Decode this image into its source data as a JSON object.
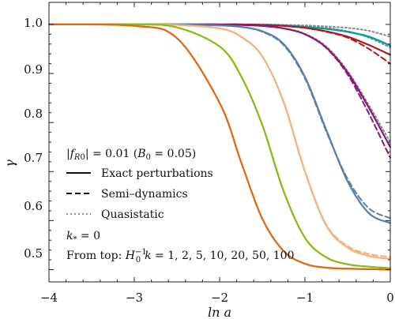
{
  "chart_data": {
    "type": "line",
    "xlabel": "ln a",
    "ylabel": "γ",
    "xlim": [
      -4,
      0
    ],
    "ylim": [
      0.475,
      1.045
    ],
    "xticks": [
      "−4",
      "−3",
      "−2",
      "−1",
      "0"
    ],
    "yticks": [
      "0.5",
      "0.6",
      "0.7",
      "0.8",
      "0.9",
      "1.0"
    ],
    "grid": false,
    "legend": {
      "placement": "bottom-left",
      "header": "|f_R0| = 0.01 (B_0 = 0.05)",
      "styles": [
        {
          "label": "Exact perturbations",
          "dash": "solid"
        },
        {
          "label": "Semi–dynamics",
          "dash": "dashed"
        },
        {
          "label": "Quasistatic",
          "dash": "dotted"
        }
      ],
      "kstar": "k_* = 0",
      "from_top": "From top: H_0^{-1}k = 1, 2, 5, 10, 20, 50, 100"
    },
    "curves_sampled_at_ln_a": [
      -4,
      -3,
      -2.5,
      -2,
      -1.75,
      -1.5,
      -1.25,
      -1,
      -0.75,
      -0.5,
      -0.25,
      0
    ],
    "series": [
      {
        "k": "1",
        "color": "#00a0a0",
        "exact": [
          1.0,
          1.0,
          1.0,
          1.0,
          1.0,
          0.999,
          0.998,
          0.995,
          0.991,
          0.985,
          0.975,
          0.957
        ],
        "semi": [
          1.0,
          1.0,
          1.0,
          1.0,
          1.0,
          0.999,
          0.998,
          0.995,
          0.991,
          0.985,
          0.975,
          0.957
        ],
        "quasistatic": [
          1.0,
          1.0,
          1.0,
          1.0,
          1.0,
          1.0,
          0.999,
          0.998,
          0.996,
          0.993,
          0.987,
          0.975
        ]
      },
      {
        "k": "2",
        "color": "#b01820",
        "exact": [
          1.0,
          1.0,
          1.0,
          1.0,
          1.0,
          0.999,
          0.997,
          0.993,
          0.986,
          0.975,
          0.958,
          0.938
        ],
        "semi": [
          1.0,
          1.0,
          1.0,
          1.0,
          1.0,
          0.999,
          0.997,
          0.993,
          0.985,
          0.973,
          0.95,
          0.92
        ],
        "quasistatic": [
          1.0,
          1.0,
          1.0,
          1.0,
          1.0,
          1.0,
          0.999,
          0.997,
          0.993,
          0.986,
          0.973,
          0.953
        ]
      },
      {
        "k": "5",
        "color": "#8a1a7a",
        "exact": [
          1.0,
          1.0,
          1.0,
          1.0,
          0.999,
          0.997,
          0.992,
          0.98,
          0.953,
          0.902,
          0.83,
          0.75
        ],
        "semi": [
          1.0,
          1.0,
          1.0,
          1.0,
          0.999,
          0.997,
          0.992,
          0.98,
          0.952,
          0.898,
          0.818,
          0.728
        ],
        "quasistatic": [
          1.0,
          1.0,
          1.0,
          1.0,
          0.999,
          0.997,
          0.992,
          0.981,
          0.955,
          0.905,
          0.835,
          0.76
        ]
      },
      {
        "k": "10",
        "color": "#5580b0",
        "exact": [
          1.0,
          1.0,
          1.0,
          0.998,
          0.995,
          0.986,
          0.96,
          0.893,
          0.785,
          0.68,
          0.615,
          0.595
        ],
        "semi": [
          1.0,
          1.0,
          1.0,
          0.998,
          0.995,
          0.985,
          0.958,
          0.89,
          0.782,
          0.685,
          0.625,
          0.605
        ],
        "quasistatic": [
          1.0,
          1.0,
          1.0,
          0.998,
          0.995,
          0.986,
          0.96,
          0.893,
          0.785,
          0.68,
          0.615,
          0.595
        ]
      },
      {
        "k": "20",
        "color": "#f5b27a",
        "exact": [
          1.0,
          1.0,
          0.999,
          0.992,
          0.975,
          0.935,
          0.842,
          0.7,
          0.59,
          0.545,
          0.528,
          0.522
        ],
        "semi": [
          1.0,
          1.0,
          0.999,
          0.992,
          0.975,
          0.935,
          0.842,
          0.7,
          0.592,
          0.548,
          0.532,
          0.526
        ],
        "quasistatic": [
          1.0,
          1.0,
          0.999,
          0.992,
          0.975,
          0.935,
          0.842,
          0.7,
          0.59,
          0.545,
          0.528,
          0.522
        ]
      },
      {
        "k": "50",
        "color": "#80c018",
        "exact": [
          1.0,
          1.0,
          0.994,
          0.955,
          0.895,
          0.795,
          0.66,
          0.565,
          0.525,
          0.511,
          0.506,
          0.503
        ],
        "semi": [
          1.0,
          1.0,
          0.994,
          0.955,
          0.895,
          0.795,
          0.66,
          0.565,
          0.525,
          0.511,
          0.506,
          0.503
        ],
        "quasistatic": [
          1.0,
          1.0,
          0.994,
          0.955,
          0.895,
          0.795,
          0.66,
          0.565,
          0.525,
          0.511,
          0.506,
          0.503
        ]
      },
      {
        "k": "100",
        "color": "#e06a10",
        "exact": [
          1.0,
          0.997,
          0.972,
          0.84,
          0.72,
          0.604,
          0.538,
          0.512,
          0.504,
          0.502,
          0.501,
          0.5
        ],
        "semi": [
          1.0,
          0.997,
          0.972,
          0.84,
          0.72,
          0.604,
          0.538,
          0.512,
          0.504,
          0.502,
          0.501,
          0.5
        ],
        "quasistatic": [
          1.0,
          0.997,
          0.972,
          0.84,
          0.72,
          0.604,
          0.538,
          0.512,
          0.504,
          0.502,
          0.501,
          0.5
        ]
      }
    ]
  }
}
